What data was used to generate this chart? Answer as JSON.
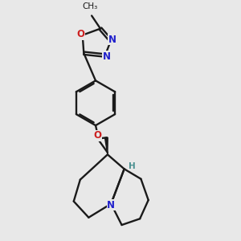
{
  "bg": "#e8e8e8",
  "bc": "#1a1a1a",
  "Nc": "#2020cc",
  "Oc": "#cc2020",
  "Hc": "#4a9090",
  "lw": 1.7,
  "figsize": [
    3.0,
    3.0
  ],
  "dpi": 100,
  "xlim": [
    1.8,
    7.8
  ],
  "ylim": [
    1.0,
    10.5
  ]
}
